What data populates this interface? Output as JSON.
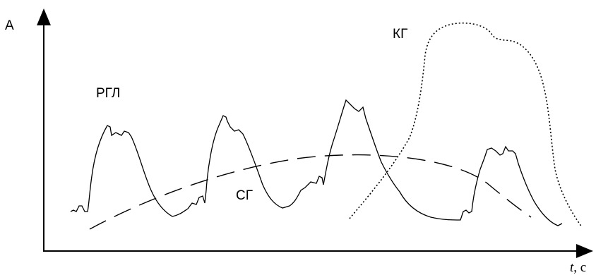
{
  "labels": {
    "y_axis": "А",
    "x_axis_var": "t",
    "x_axis_unit": ", с",
    "curve_rgl": "РГЛ",
    "curve_sg": "СГ",
    "curve_kg": "КГ"
  },
  "colors": {
    "line": "#000000",
    "background": "#ffffff"
  }
}
